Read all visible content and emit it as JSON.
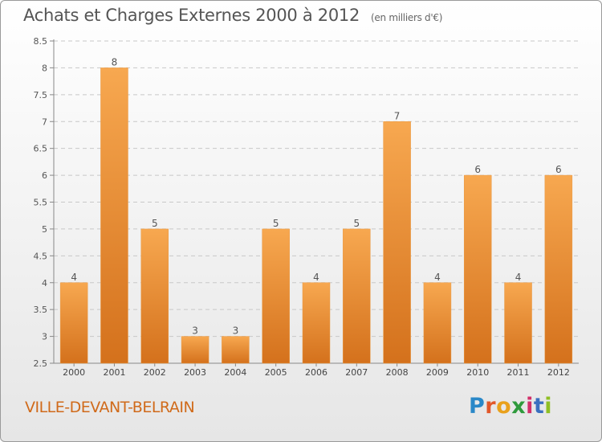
{
  "header": {
    "title": "Achats et Charges Externes 2000 à 2012",
    "subtitle": "(en milliers d'€)"
  },
  "footer": {
    "commune": "VILLE-DEVANT-BELRAIN",
    "logo": [
      "P",
      "r",
      "o",
      "x",
      "i",
      "t",
      "i"
    ]
  },
  "chart_data": {
    "type": "bar",
    "title": "Achats et Charges Externes 2000 à 2012",
    "subtitle": "(en milliers d'€)",
    "categories": [
      "2000",
      "2001",
      "2002",
      "2003",
      "2004",
      "2005",
      "2006",
      "2007",
      "2008",
      "2009",
      "2010",
      "2011",
      "2012"
    ],
    "values": [
      4,
      8,
      5,
      3,
      3,
      5,
      4,
      5,
      7,
      4,
      6,
      4,
      6
    ],
    "data_labels": [
      "4",
      "8",
      "5",
      "3",
      "3",
      "5",
      "4",
      "5",
      "7",
      "4",
      "6",
      "4",
      "6"
    ],
    "yticks": [
      "2.5",
      "3",
      "3.5",
      "4",
      "4.5",
      "5",
      "5.5",
      "6",
      "6.5",
      "7",
      "7.5",
      "8",
      "8.5"
    ],
    "ylim": [
      2.5,
      8.5
    ],
    "grid": true,
    "bar_color": "#f0922f",
    "bar_color_dark": "#d86f18"
  }
}
